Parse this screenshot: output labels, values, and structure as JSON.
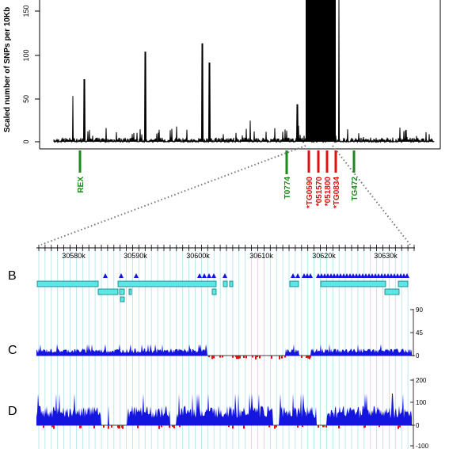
{
  "top_plot": {
    "ylabel": "Scaled number of SNPs per 10Kb",
    "yticks": [
      "0",
      "50",
      "100",
      "150"
    ],
    "markers_green": [
      "REX",
      "T0774",
      "TG472"
    ],
    "markers_red": [
      "*TG0590",
      "*051570",
      "*051800",
      "*TG0834"
    ]
  },
  "zoom": {
    "positions": [
      "30580k",
      "30590k",
      "30600k",
      "30610k",
      "30620k",
      "30630k"
    ]
  },
  "panels": {
    "b": "B",
    "c": "C",
    "d": "D"
  },
  "panel_c_scale": [
    "90",
    "45",
    "0"
  ],
  "panel_d_scale": [
    "200",
    "100",
    "0",
    "-100"
  ],
  "colors": {
    "green": "#1a8a1a",
    "red": "#e01010",
    "blue": "#1515e0",
    "cyan": "#5ee6e6",
    "gridline": "#a8e4ea"
  },
  "chart_data": {
    "type": "bar",
    "ylabel": "Scaled number of SNPs per 10Kb",
    "ylim": [
      0,
      170
    ],
    "notable_peaks": [
      {
        "x_fraction": 0.05,
        "value": 55
      },
      {
        "x_fraction": 0.08,
        "value": 75
      },
      {
        "x_fraction": 0.24,
        "value": 108
      },
      {
        "x_fraction": 0.39,
        "value": 118
      },
      {
        "x_fraction": 0.41,
        "value": 95
      },
      {
        "x_fraction": 0.64,
        "value": 45
      },
      {
        "x_fraction": 0.75,
        "value": 170
      }
    ]
  }
}
